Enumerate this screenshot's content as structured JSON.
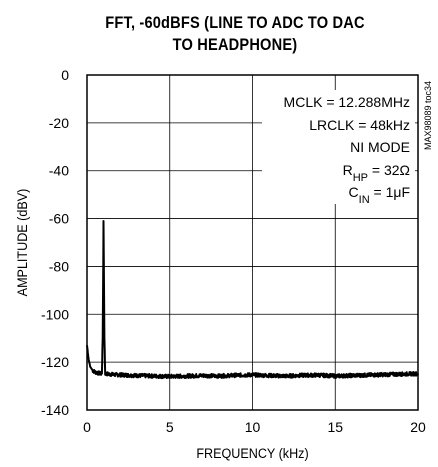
{
  "chart_data": {
    "type": "line",
    "title_lines": [
      "FFT, -60dBFS (LINE TO ADC TO DAC",
      "TO HEADPHONE)"
    ],
    "xlabel": "FREQUENCY (kHz)",
    "ylabel": "AMPLITUDE (dBV)",
    "xlim": [
      0,
      20
    ],
    "ylim": [
      -140,
      0
    ],
    "x_ticks": [
      0,
      5,
      10,
      15,
      20
    ],
    "y_ticks": [
      0,
      -20,
      -40,
      -60,
      -80,
      -100,
      -120,
      -140
    ],
    "grid": true,
    "annotations": [
      {
        "text": "MCLK = 12.288MHz"
      },
      {
        "text": "LRCLK = 48kHz"
      },
      {
        "text": "NI MODE"
      },
      {
        "main": "R",
        "sub": "HP",
        "rest": " = 32Ω"
      },
      {
        "main": "C",
        "sub": "IN",
        "rest": " = 1μF"
      }
    ],
    "watermark": "MAX98089 toc34",
    "series": [
      {
        "x": [
          0,
          0.1,
          0.2,
          0.35,
          0.5,
          0.7,
          0.9,
          0.95,
          1.0,
          1.05,
          1.1,
          1.3,
          1.6,
          2,
          3,
          4,
          5,
          6,
          7,
          8,
          9,
          10,
          11,
          12,
          13,
          14,
          15,
          16,
          17,
          18,
          19,
          20
        ],
        "y": [
          -113,
          -119,
          -122,
          -123.5,
          -124.2,
          -124.6,
          -124.8,
          -110,
          -61,
          -110,
          -124.8,
          -125,
          -125.2,
          -125.3,
          -125.6,
          -125.8,
          -126,
          -125.8,
          -125.6,
          -125.8,
          -125.5,
          -125.3,
          -125.6,
          -125.8,
          -125.5,
          -125.4,
          -125.8,
          -125.6,
          -125.4,
          -125.2,
          -125,
          -124.8
        ]
      }
    ]
  }
}
